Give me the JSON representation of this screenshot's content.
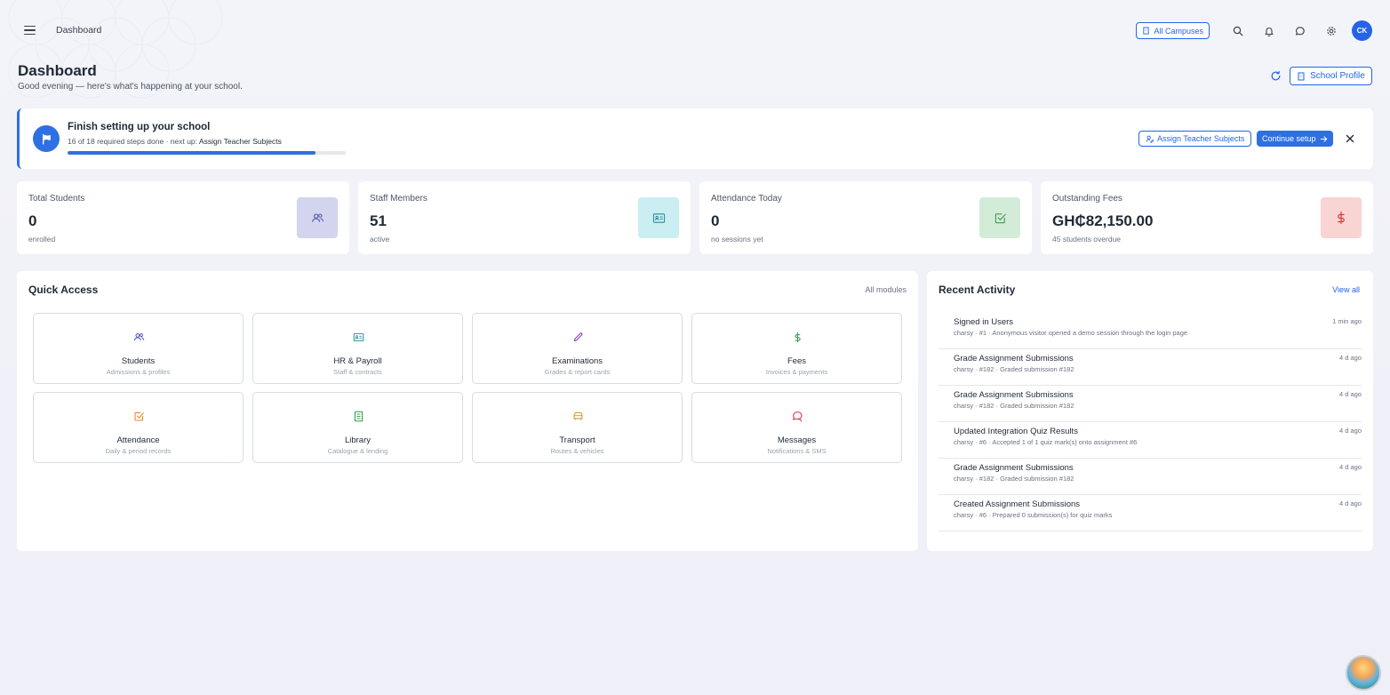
{
  "topbar": {
    "breadcrumb": "Dashboard",
    "campus_label": "All Campuses",
    "avatar_initials": "CK"
  },
  "header": {
    "title": "Dashboard",
    "subtitle": "Good evening — here's what's happening at your school.",
    "profile_label": "School Profile"
  },
  "setup": {
    "title": "Finish setting up your school",
    "steps_prefix": "16 of 18 required steps done · next up: ",
    "next_step": "Assign Teacher Subjects",
    "progress": 0.89,
    "assign_label": "Assign Teacher Subjects",
    "continue_label": "Continue setup"
  },
  "stats": [
    {
      "label": "Total Students",
      "value": "0",
      "sub": "enrolled",
      "icon": "users-icon",
      "color": "#d3d5ee",
      "icon_color": "#5457b8"
    },
    {
      "label": "Staff Members",
      "value": "51",
      "sub": "active",
      "icon": "id-card-icon",
      "color": "#cbeef2",
      "icon_color": "#2b8a9a"
    },
    {
      "label": "Attendance Today",
      "value": "0",
      "sub": "no sessions yet",
      "icon": "check-square-icon",
      "color": "#d3ecd7",
      "icon_color": "#3f9a55"
    },
    {
      "label": "Outstanding Fees",
      "value": "GH₵82,150.00",
      "sub": "45 students overdue",
      "icon": "dollar-icon",
      "color": "#f8d4d2",
      "icon_color": "#d23c36"
    }
  ],
  "quick_access": {
    "title": "Quick Access",
    "link": "All modules",
    "tiles": [
      {
        "name": "Students",
        "desc": "Admissions & profiles",
        "icon": "users-icon",
        "color": "#5457b8"
      },
      {
        "name": "HR & Payroll",
        "desc": "Staff & contracts",
        "icon": "id-card-icon",
        "color": "#2b8a9a"
      },
      {
        "name": "Examinations",
        "desc": "Grades & report cards",
        "icon": "pencil-icon",
        "color": "#8a3fb0"
      },
      {
        "name": "Fees",
        "desc": "Invoices & payments",
        "icon": "dollar-icon",
        "color": "#2f9a4f"
      },
      {
        "name": "Attendance",
        "desc": "Daily & period records",
        "icon": "check-square-icon",
        "color": "#e08a2a"
      },
      {
        "name": "Library",
        "desc": "Catalogue & lending",
        "icon": "book-icon",
        "color": "#2f9a4f"
      },
      {
        "name": "Transport",
        "desc": "Routes & vehicles",
        "icon": "bus-icon",
        "color": "#d99a1e"
      },
      {
        "name": "Messages",
        "desc": "Notifications & SMS",
        "icon": "chat-icon",
        "color": "#d2344a"
      }
    ]
  },
  "activity": {
    "title": "Recent Activity",
    "link": "View all",
    "items": [
      {
        "name": "Signed in Users",
        "meta": "charsy · #1 · Anonymous visitor opened a demo session through the login page",
        "time": "1 min ago"
      },
      {
        "name": "Grade Assignment Submissions",
        "meta": "charsy · #182 · Graded submission #182",
        "time": "4 d ago"
      },
      {
        "name": "Grade Assignment Submissions",
        "meta": "charsy · #182 · Graded submission #182",
        "time": "4 d ago"
      },
      {
        "name": "Updated Integration Quiz Results",
        "meta": "charsy · #6 · Accepted 1 of 1 quiz mark(s) onto assignment #6",
        "time": "4 d ago"
      },
      {
        "name": "Grade Assignment Submissions",
        "meta": "charsy · #182 · Graded submission #182",
        "time": "4 d ago"
      },
      {
        "name": "Created Assignment Submissions",
        "meta": "charsy · #6 · Prepared 0 submission(s) for quiz marks",
        "time": "4 d ago"
      }
    ]
  },
  "colors": {
    "accent": "#2f6fe4",
    "brand": "#2563eb"
  }
}
